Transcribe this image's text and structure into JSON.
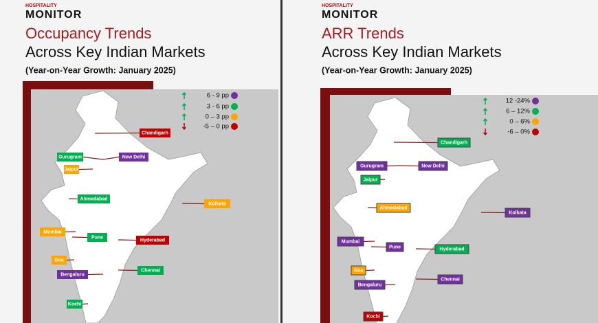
{
  "panels": [
    {
      "brand_top": "HOSPITALITY",
      "brand": "MONITOR",
      "title_line1": "Occupancy Trends",
      "title_line2": "Across Key Indian Markets",
      "subtitle": "(Year-on-Year Growth: January 2025)",
      "legend": [
        {
          "label": "6 - 9 pp",
          "color": "#7030a0"
        },
        {
          "label": "3 - 6 pp",
          "color": "#00b050"
        },
        {
          "label": "0 – 3 pp",
          "color": "#ffa500"
        },
        {
          "label": "-5 – 0 pp",
          "color": "#c00000"
        }
      ],
      "cities": [
        {
          "name": "Chandigarh",
          "color": "#c00000"
        },
        {
          "name": "Gurugram",
          "color": "#00b050"
        },
        {
          "name": "New Delhi",
          "color": "#7030a0"
        },
        {
          "name": "Jaipur",
          "color": "#ffa500"
        },
        {
          "name": "Ahmedabad",
          "color": "#00b050"
        },
        {
          "name": "Kolkata",
          "color": "#ffa500"
        },
        {
          "name": "Mumbai",
          "color": "#ffa500"
        },
        {
          "name": "Pune",
          "color": "#00b050"
        },
        {
          "name": "Hyderabad",
          "color": "#c00000"
        },
        {
          "name": "Goa",
          "color": "#ffa500"
        },
        {
          "name": "Bengaluru",
          "color": "#7030a0"
        },
        {
          "name": "Chennai",
          "color": "#00b050"
        },
        {
          "name": "Kochi",
          "color": "#00b050"
        }
      ]
    },
    {
      "brand_top": "HOSPITALITY",
      "brand": "MONITOR",
      "title_line1": "ARR Trends",
      "title_line2": "Across Key Indian Markets",
      "subtitle": "(Year-on-Year Growth: January 2025)",
      "legend": [
        {
          "label": "12 -24%",
          "color": "#7030a0"
        },
        {
          "label": "6 – 12%",
          "color": "#00b050"
        },
        {
          "label": "0 – 6%",
          "color": "#ffa500"
        },
        {
          "label": "-6 – 0%",
          "color": "#c00000"
        }
      ],
      "cities": [
        {
          "name": "Chandigarh",
          "color": "#00b050"
        },
        {
          "name": "Gurugram",
          "color": "#7030a0"
        },
        {
          "name": "New Delhi",
          "color": "#7030a0"
        },
        {
          "name": "Jaipur",
          "color": "#00b050"
        },
        {
          "name": "Ahmedabad",
          "color": "#ffa500"
        },
        {
          "name": "Kolkata",
          "color": "#7030a0"
        },
        {
          "name": "Mumbai",
          "color": "#7030a0"
        },
        {
          "name": "Pune",
          "color": "#7030a0"
        },
        {
          "name": "Hyderabad",
          "color": "#00b050"
        },
        {
          "name": "Goa",
          "color": "#ffa500"
        },
        {
          "name": "Bengaluru",
          "color": "#7030a0"
        },
        {
          "name": "Chennai",
          "color": "#7030a0"
        },
        {
          "name": "Kochi",
          "color": "#c00000"
        }
      ]
    }
  ]
}
